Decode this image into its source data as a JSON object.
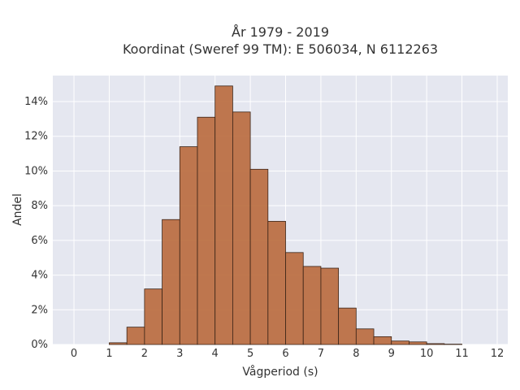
{
  "title_line1": "År 1979 - 2019",
  "title_line2": "Koordinat (Sweref 99 TM): E 506034, N 6112263",
  "chart_data": {
    "type": "bar",
    "title": "År 1979 - 2019 / Koordinat (Sweref 99 TM): E 506034, N 6112263",
    "xlabel": "Vågperiod (s)",
    "ylabel": "Andel",
    "bin_width": 0.5,
    "bins_start": [
      1.0,
      1.5,
      2.0,
      2.5,
      3.0,
      3.5,
      4.0,
      4.5,
      5.0,
      5.5,
      6.0,
      6.5,
      7.0,
      7.5,
      8.0,
      8.5,
      9.0,
      9.5,
      10.0,
      10.5
    ],
    "values": [
      0.1,
      1.0,
      3.2,
      7.2,
      11.4,
      13.1,
      14.9,
      13.4,
      10.1,
      7.1,
      5.3,
      4.5,
      4.4,
      2.1,
      0.9,
      0.45,
      0.2,
      0.15,
      0.05,
      0.02
    ],
    "xlim": [
      -0.6,
      12.3
    ],
    "ylim": [
      0,
      15.5
    ],
    "xticks": [
      0,
      1,
      2,
      3,
      4,
      5,
      6,
      7,
      8,
      9,
      10,
      11,
      12
    ],
    "xtick_labels": [
      "0",
      "1",
      "2",
      "3",
      "4",
      "5",
      "6",
      "7",
      "8",
      "9",
      "10",
      "11",
      "12"
    ],
    "yticks": [
      0,
      2,
      4,
      6,
      8,
      10,
      12,
      14
    ],
    "ytick_labels": [
      "0%",
      "2%",
      "4%",
      "6%",
      "8%",
      "10%",
      "12%",
      "14%"
    ],
    "grid": true,
    "colors": {
      "bar": "#b9693c",
      "bar_edge": "#3a2418",
      "plot_bg": "#e5e7f0",
      "grid": "#ffffff"
    }
  }
}
